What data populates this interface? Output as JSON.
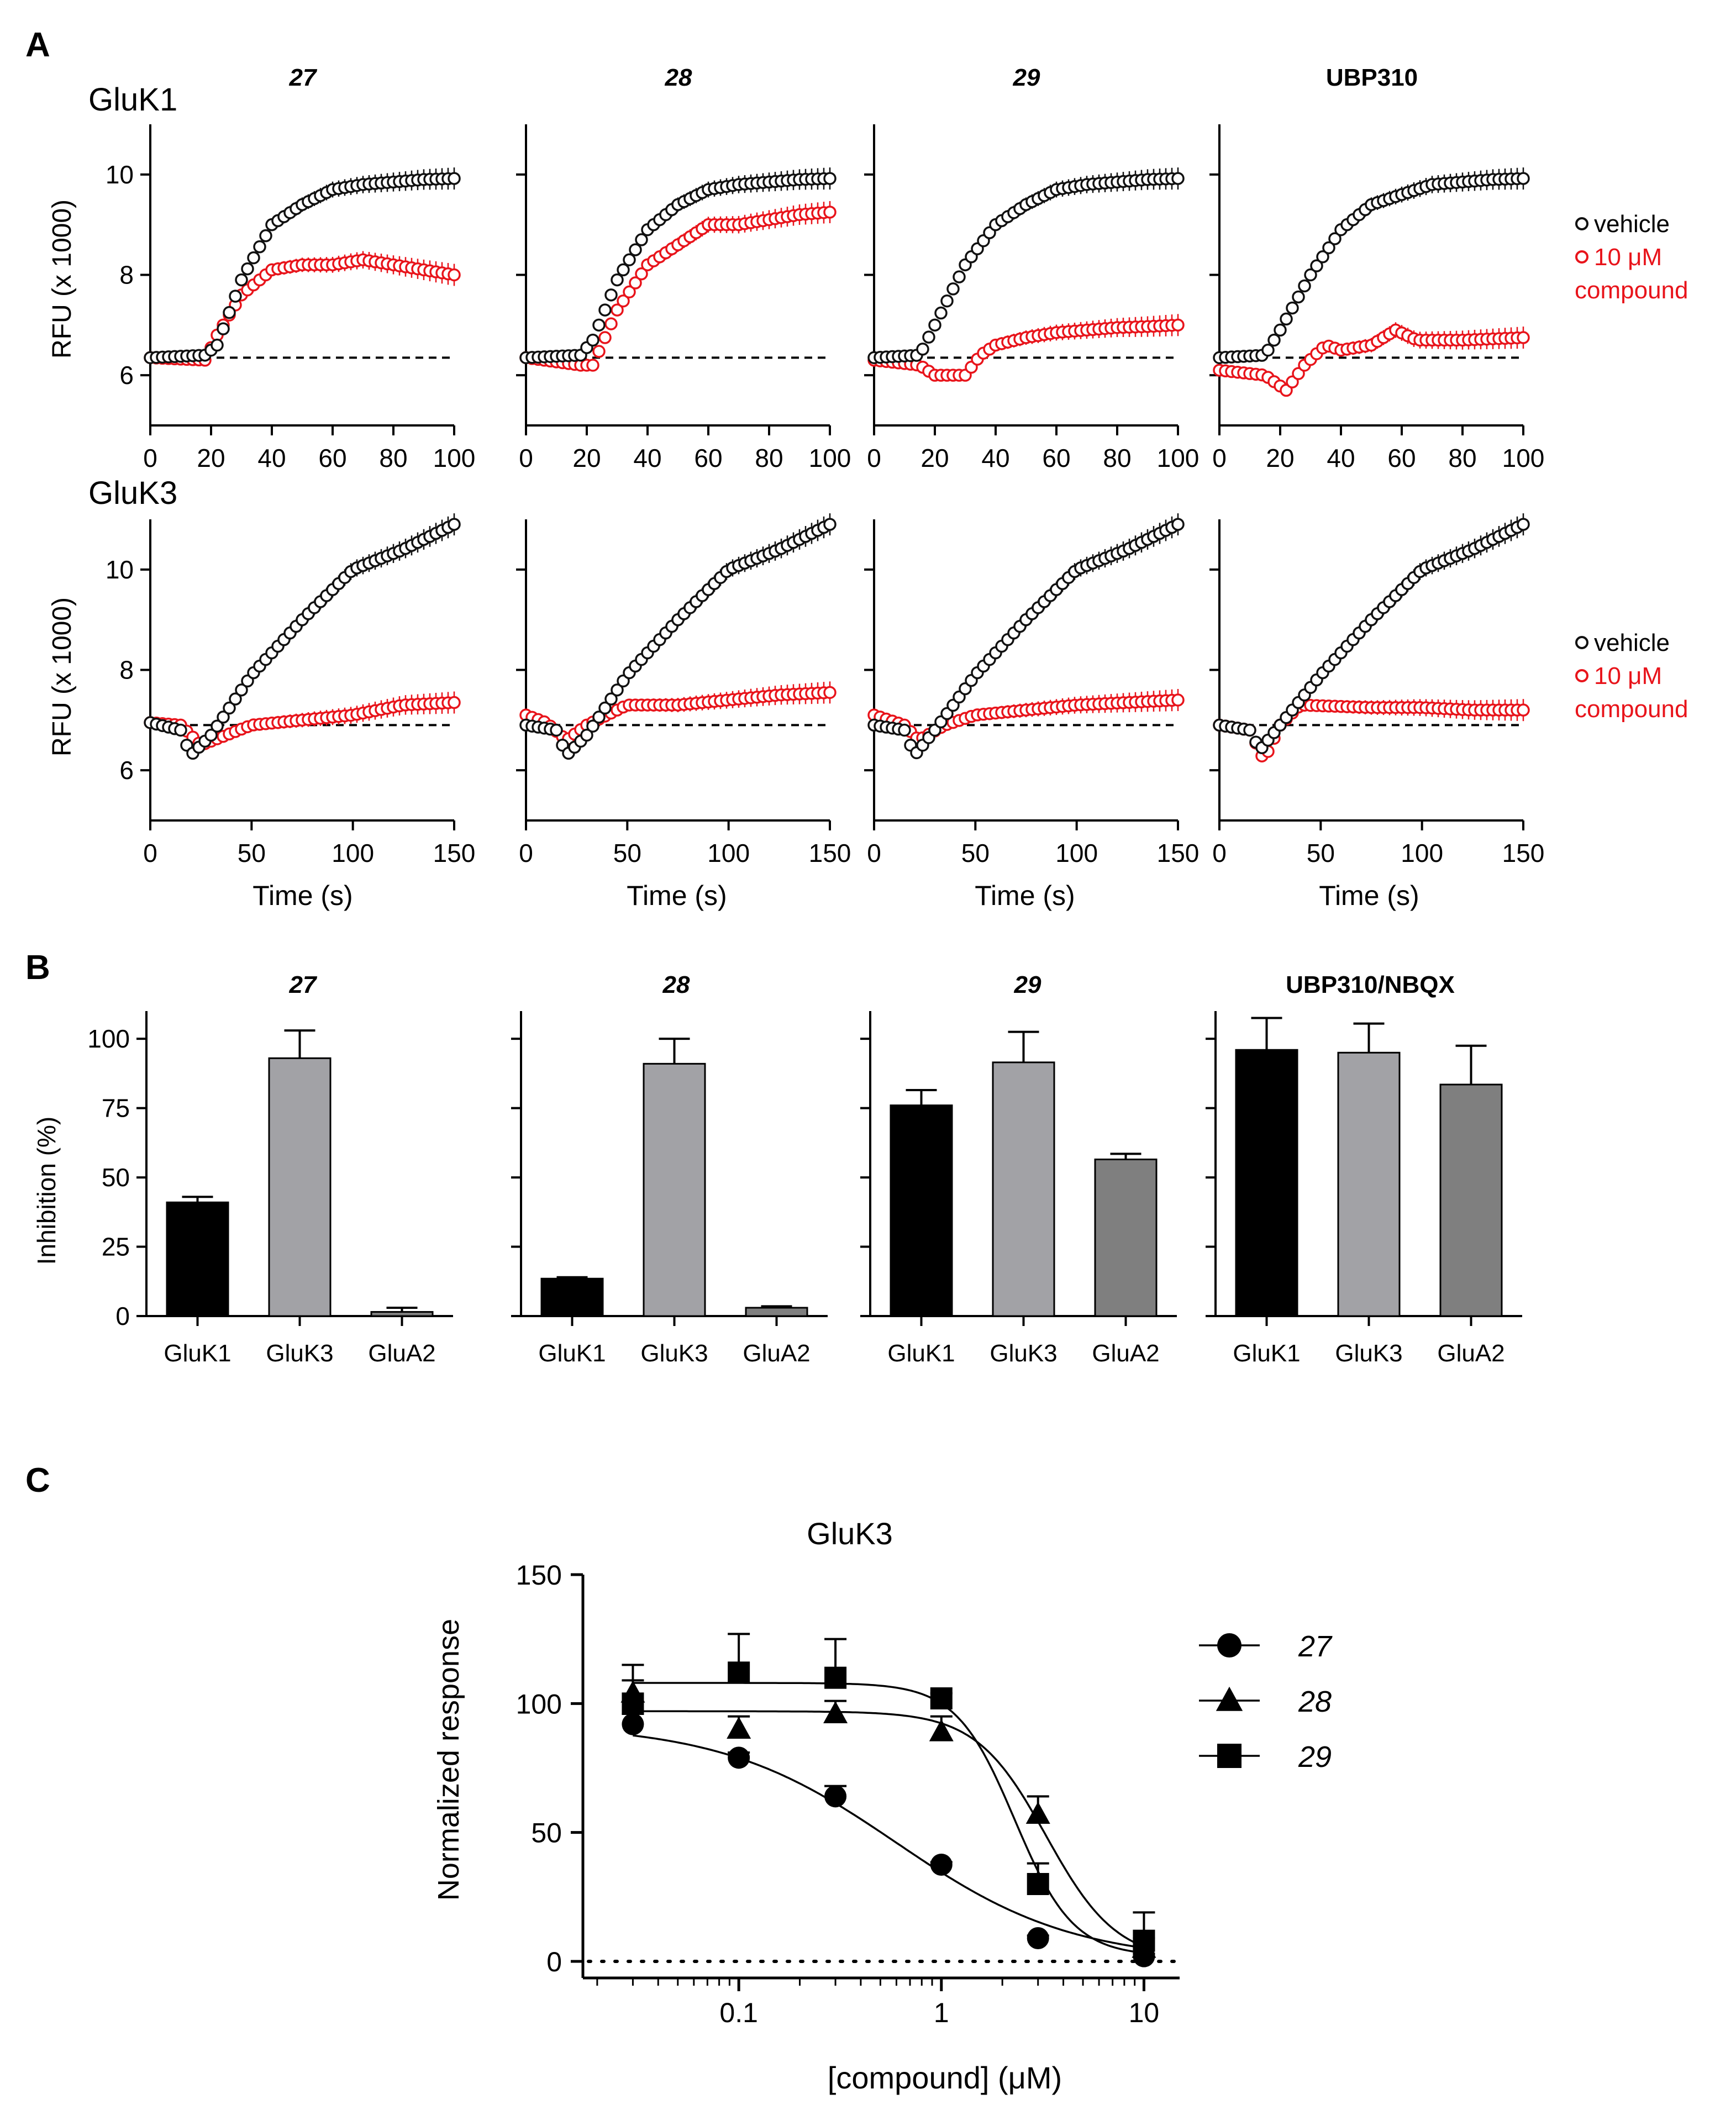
{
  "colors": {
    "vehicle": "#111111",
    "compound": "#e8141b",
    "bar_gluk1": "#000000",
    "bar_gluk3": "#a2a2a6",
    "bar_glua2": "#7f7f7f"
  },
  "panels": {
    "a": "A",
    "b": "B",
    "c": "C"
  },
  "chart_data": [
    {
      "id": "A-GluK1",
      "type": "line",
      "row_label": "GluK1",
      "ylabel": "RFU (x 1000)",
      "xlim": [
        0,
        100
      ],
      "ylim": [
        5,
        11
      ],
      "xticks": [
        0,
        20,
        40,
        60,
        80,
        100
      ],
      "yticks": [
        6,
        8,
        10
      ],
      "baseline": 6.35,
      "legend": [
        "vehicle",
        "10 μM",
        "compound"
      ],
      "subplots": [
        {
          "title": "27",
          "italic": true,
          "vehicle": [
            [
              0,
              6.35
            ],
            [
              18,
              6.4
            ],
            [
              22,
              6.6
            ],
            [
              30,
              7.9
            ],
            [
              40,
              9.0
            ],
            [
              50,
              9.4
            ],
            [
              60,
              9.7
            ],
            [
              70,
              9.8
            ],
            [
              80,
              9.85
            ],
            [
              90,
              9.9
            ],
            [
              100,
              9.92
            ]
          ],
          "compound": [
            [
              0,
              6.35
            ],
            [
              18,
              6.3
            ],
            [
              22,
              6.8
            ],
            [
              30,
              7.6
            ],
            [
              40,
              8.1
            ],
            [
              50,
              8.2
            ],
            [
              60,
              8.2
            ],
            [
              70,
              8.3
            ],
            [
              80,
              8.2
            ],
            [
              90,
              8.1
            ],
            [
              100,
              8.0
            ]
          ]
        },
        {
          "title": "28",
          "italic": true,
          "vehicle": [
            [
              0,
              6.35
            ],
            [
              18,
              6.4
            ],
            [
              22,
              6.7
            ],
            [
              30,
              7.9
            ],
            [
              40,
              8.9
            ],
            [
              50,
              9.4
            ],
            [
              60,
              9.7
            ],
            [
              70,
              9.8
            ],
            [
              80,
              9.85
            ],
            [
              90,
              9.9
            ],
            [
              100,
              9.92
            ]
          ],
          "compound": [
            [
              0,
              6.35
            ],
            [
              18,
              6.2
            ],
            [
              22,
              6.2
            ],
            [
              30,
              7.3
            ],
            [
              40,
              8.2
            ],
            [
              50,
              8.6
            ],
            [
              60,
              9.0
            ],
            [
              70,
              9.0
            ],
            [
              80,
              9.1
            ],
            [
              90,
              9.2
            ],
            [
              100,
              9.25
            ]
          ]
        },
        {
          "title": "29",
          "italic": true,
          "vehicle": [
            [
              0,
              6.35
            ],
            [
              15,
              6.4
            ],
            [
              20,
              7.0
            ],
            [
              30,
              8.2
            ],
            [
              40,
              9.0
            ],
            [
              50,
              9.4
            ],
            [
              60,
              9.7
            ],
            [
              70,
              9.8
            ],
            [
              80,
              9.85
            ],
            [
              90,
              9.9
            ],
            [
              100,
              9.92
            ]
          ],
          "compound": [
            [
              0,
              6.3
            ],
            [
              15,
              6.2
            ],
            [
              20,
              6.0
            ],
            [
              30,
              6.0
            ],
            [
              35,
              6.4
            ],
            [
              40,
              6.6
            ],
            [
              50,
              6.75
            ],
            [
              60,
              6.85
            ],
            [
              70,
              6.9
            ],
            [
              80,
              6.95
            ],
            [
              90,
              6.97
            ],
            [
              100,
              7.0
            ]
          ]
        },
        {
          "title": "UBP310",
          "italic": false,
          "vehicle": [
            [
              0,
              6.35
            ],
            [
              15,
              6.4
            ],
            [
              20,
              6.9
            ],
            [
              30,
              8.0
            ],
            [
              40,
              8.9
            ],
            [
              50,
              9.4
            ],
            [
              60,
              9.6
            ],
            [
              70,
              9.8
            ],
            [
              80,
              9.85
            ],
            [
              90,
              9.9
            ],
            [
              100,
              9.92
            ]
          ],
          "compound": [
            [
              0,
              6.1
            ],
            [
              15,
              6.0
            ],
            [
              22,
              5.7
            ],
            [
              28,
              6.2
            ],
            [
              35,
              6.6
            ],
            [
              40,
              6.5
            ],
            [
              50,
              6.6
            ],
            [
              58,
              6.9
            ],
            [
              65,
              6.7
            ],
            [
              80,
              6.7
            ],
            [
              100,
              6.75
            ]
          ]
        }
      ]
    },
    {
      "id": "A-GluK3",
      "type": "line",
      "row_label": "GluK3",
      "ylabel": "RFU (x 1000)",
      "xlabel": "Time (s)",
      "xlim": [
        0,
        150
      ],
      "ylim": [
        5,
        11
      ],
      "xticks": [
        0,
        50,
        100,
        150
      ],
      "yticks": [
        6,
        8,
        10
      ],
      "baseline": 6.9,
      "legend": [
        "vehicle",
        "10 μM",
        "compound"
      ],
      "subplots": [
        {
          "title": "27",
          "vehicle": [
            [
              0,
              6.95
            ],
            [
              15,
              6.8
            ],
            [
              20,
              6.3
            ],
            [
              30,
              6.7
            ],
            [
              50,
              7.9
            ],
            [
              75,
              9.0
            ],
            [
              100,
              10.0
            ],
            [
              125,
              10.4
            ],
            [
              150,
              10.9
            ]
          ],
          "compound": [
            [
              0,
              6.95
            ],
            [
              15,
              6.9
            ],
            [
              25,
              6.5
            ],
            [
              50,
              6.9
            ],
            [
              75,
              7.0
            ],
            [
              100,
              7.1
            ],
            [
              125,
              7.3
            ],
            [
              150,
              7.35
            ]
          ]
        },
        {
          "title": "28",
          "vehicle": [
            [
              0,
              6.9
            ],
            [
              15,
              6.8
            ],
            [
              20,
              6.3
            ],
            [
              30,
              6.7
            ],
            [
              50,
              7.9
            ],
            [
              75,
              9.0
            ],
            [
              100,
              10.0
            ],
            [
              125,
              10.4
            ],
            [
              150,
              10.9
            ]
          ],
          "compound": [
            [
              0,
              7.1
            ],
            [
              10,
              6.95
            ],
            [
              20,
              6.6
            ],
            [
              30,
              6.9
            ],
            [
              50,
              7.3
            ],
            [
              75,
              7.3
            ],
            [
              100,
              7.4
            ],
            [
              125,
              7.5
            ],
            [
              150,
              7.55
            ]
          ]
        },
        {
          "title": "29",
          "vehicle": [
            [
              0,
              6.9
            ],
            [
              15,
              6.8
            ],
            [
              20,
              6.3
            ],
            [
              30,
              6.8
            ],
            [
              50,
              7.9
            ],
            [
              75,
              9.0
            ],
            [
              100,
              10.0
            ],
            [
              125,
              10.4
            ],
            [
              150,
              10.9
            ]
          ],
          "compound": [
            [
              0,
              7.1
            ],
            [
              15,
              6.9
            ],
            [
              22,
              6.6
            ],
            [
              35,
              6.9
            ],
            [
              50,
              7.1
            ],
            [
              75,
              7.2
            ],
            [
              100,
              7.3
            ],
            [
              125,
              7.35
            ],
            [
              150,
              7.4
            ]
          ]
        },
        {
          "title": "UBP310",
          "vehicle": [
            [
              0,
              6.9
            ],
            [
              15,
              6.8
            ],
            [
              20,
              6.4
            ],
            [
              30,
              6.9
            ],
            [
              50,
              7.9
            ],
            [
              75,
              9.0
            ],
            [
              100,
              10.0
            ],
            [
              125,
              10.4
            ],
            [
              150,
              10.9
            ]
          ],
          "compound": [
            [
              0,
              6.9
            ],
            [
              15,
              6.8
            ],
            [
              22,
              6.2
            ],
            [
              30,
              6.9
            ],
            [
              40,
              7.3
            ],
            [
              75,
              7.25
            ],
            [
              100,
              7.25
            ],
            [
              125,
              7.2
            ],
            [
              150,
              7.2
            ]
          ]
        }
      ]
    },
    {
      "id": "B",
      "type": "bar",
      "ylabel": "Inhibition (%)",
      "ylim": [
        0,
        110
      ],
      "yticks": [
        0,
        25,
        50,
        75,
        100
      ],
      "categories": [
        "GluK1",
        "GluK3",
        "GluA2"
      ],
      "subplots": [
        {
          "title": "27",
          "italic": true,
          "values": [
            41,
            93,
            1.5
          ],
          "errors": [
            2,
            10,
            1.5
          ]
        },
        {
          "title": "28",
          "italic": true,
          "values": [
            13.5,
            91,
            3
          ],
          "errors": [
            0.5,
            9,
            0.5
          ]
        },
        {
          "title": "29",
          "italic": true,
          "values": [
            76,
            91.5,
            56.5
          ],
          "errors": [
            5.5,
            11,
            2
          ]
        },
        {
          "title": "UBP310/NBQX",
          "italic": false,
          "values": [
            96,
            95,
            83.5
          ],
          "errors": [
            11.5,
            10.5,
            14
          ]
        }
      ]
    },
    {
      "id": "C",
      "type": "scatter",
      "title": "GluK3",
      "xlabel": "[compound] (μM)",
      "ylabel": "Normalized response",
      "xscale": "log",
      "xlim": [
        0.017,
        15
      ],
      "ylim": [
        0,
        150
      ],
      "xticks": [
        0.1,
        1,
        10
      ],
      "xtick_labels": [
        "0.1",
        "1",
        "10"
      ],
      "yticks": [
        0,
        50,
        100,
        150
      ],
      "series": [
        {
          "name": "27",
          "marker": "circle",
          "x": [
            0.03,
            0.1,
            0.3,
            1,
            3,
            10
          ],
          "y": [
            92,
            79,
            64,
            37.5,
            9,
            2
          ],
          "err": [
            4,
            2,
            4,
            1,
            1,
            1
          ],
          "fit": {
            "top": 92,
            "bottom": 0,
            "ic50": 0.6,
            "hill": 1.0
          }
        },
        {
          "name": "28",
          "marker": "triangle",
          "x": [
            0.03,
            0.1,
            0.3,
            1,
            3,
            10
          ],
          "y": [
            104,
            90,
            96,
            89,
            57,
            5
          ],
          "err": [
            5,
            5,
            5,
            6,
            7,
            4
          ],
          "fit": {
            "top": 97,
            "bottom": 0,
            "ic50": 3.3,
            "hill": 2.5
          }
        },
        {
          "name": "29",
          "marker": "square",
          "x": [
            0.03,
            0.1,
            0.3,
            1,
            3,
            10
          ],
          "y": [
            100,
            112,
            110,
            102,
            30,
            8
          ],
          "err": [
            15,
            15,
            15,
            2,
            8,
            11
          ],
          "fit": {
            "top": 108,
            "bottom": 2,
            "ic50": 2.3,
            "hill": 3.0
          }
        }
      ]
    }
  ]
}
